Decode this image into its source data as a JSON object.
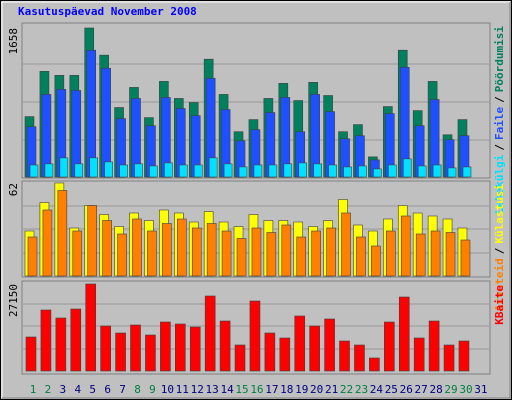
{
  "chart_data": {
    "type": "bar",
    "title": "Kasutuspäevad November 2008",
    "separator": "/",
    "categories": [
      "1",
      "2",
      "3",
      "4",
      "5",
      "6",
      "7",
      "8",
      "9",
      "10",
      "11",
      "12",
      "13",
      "14",
      "15",
      "16",
      "17",
      "18",
      "19",
      "20",
      "21",
      "22",
      "23",
      "24",
      "25",
      "26",
      "27",
      "28",
      "29",
      "30",
      "31"
    ],
    "category_colors": [
      "#008040",
      "#008040",
      "#000080",
      "#000080",
      "#000080",
      "#000080",
      "#000080",
      "#008040",
      "#008040",
      "#000080",
      "#000080",
      "#000080",
      "#000080",
      "#000080",
      "#008040",
      "#008040",
      "#000080",
      "#000080",
      "#000080",
      "#000080",
      "#000080",
      "#008040",
      "#008040",
      "#000080",
      "#000080",
      "#000080",
      "#000080",
      "#000080",
      "#008040",
      "#008040",
      "#000080"
    ],
    "panels": [
      {
        "ylim": [
          0,
          1658
        ],
        "yticks": [
          1658
        ],
        "series": [
          {
            "name": "Pöördumisi",
            "color": "#00805c",
            "values": [
              672,
              1176,
              1131,
              1131,
              1658,
              1356,
              773,
              997,
              661,
              1064,
              874,
              829,
              1311,
              919,
              504,
              639,
              874,
              1042,
              851,
              1053,
              907,
              504,
              583,
              224,
              784,
              1411,
              739,
              1064,
              470,
              639,
              null
            ]
          },
          {
            "name": "Faile",
            "color": "#1e50ff",
            "values": [
              560,
              919,
              975,
              963,
              1411,
              1210,
              650,
              874,
              571,
              885,
              762,
              683,
              1098,
              751,
              403,
              527,
              717,
              885,
              504,
              919,
              728,
              426,
              459,
              190,
              706,
              1221,
              571,
              863,
              415,
              459,
              null
            ]
          },
          {
            "name": "Lehekülgi",
            "color": "#00e0ff",
            "values": [
              134,
              146,
              213,
              146,
              213,
              168,
              134,
              146,
              123,
              157,
              134,
              134,
              213,
              146,
              112,
              134,
              134,
              146,
              157,
              146,
              134,
              112,
              123,
              90,
              134,
              202,
              123,
              134,
              101,
              112,
              null
            ]
          }
        ]
      },
      {
        "ylim": [
          0,
          62
        ],
        "yticks": [
          62
        ],
        "series": [
          {
            "name": "Külastusi",
            "color": "#ffff00",
            "values": [
              30,
              49,
              62,
              32,
              47,
              41,
              33,
              42,
              37,
              44,
              42,
              36,
              43,
              36,
              33,
              41,
              37,
              37,
              36,
              33,
              37,
              51,
              34,
              30,
              38,
              47,
              42,
              40,
              38,
              32,
              null
            ]
          },
          {
            "name": "Arvuteid",
            "color": "#ff8000",
            "values": [
              26,
              44,
              57,
              30,
              47,
              37,
              28,
              38,
              30,
              35,
              38,
              32,
              35,
              30,
              25,
              32,
              29,
              34,
              26,
              30,
              32,
              42,
              26,
              20,
              30,
              40,
              28,
              30,
              29,
              24,
              null
            ]
          }
        ]
      },
      {
        "ylim": [
          0,
          27150
        ],
        "yticks": [
          27150
        ],
        "series": [
          {
            "name": "KBaite",
            "color": "#ff0000",
            "values": [
              10610,
              19036,
              16540,
              19349,
              27150,
              14043,
              11859,
              14355,
              11234,
              15291,
              14667,
              13731,
              23405,
              15603,
              8114,
              21845,
              11859,
              10298,
              17164,
              14043,
              16228,
              9362,
              8114,
              4057,
              15291,
              23093,
              10298,
              15603,
              8114,
              9362,
              null
            ]
          }
        ]
      }
    ]
  }
}
